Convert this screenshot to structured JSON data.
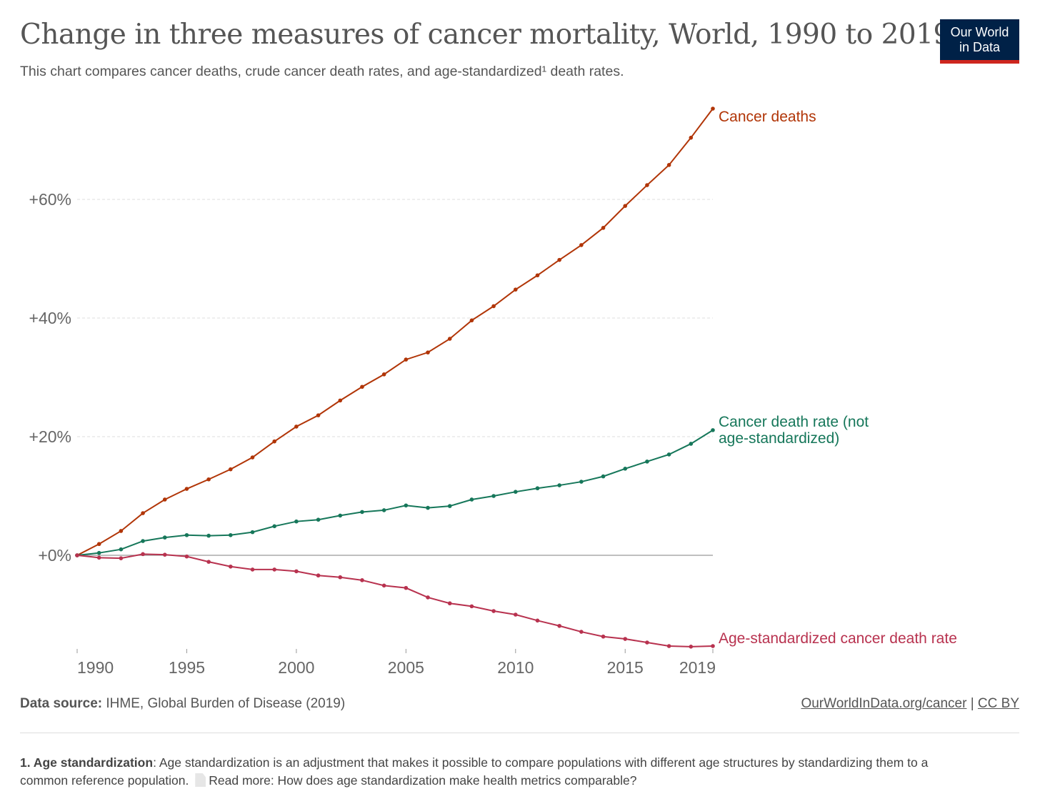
{
  "header": {
    "title": "Change in three measures of cancer mortality, World, 1990 to 2019",
    "subtitle_pre": "This chart compares cancer deaths, crude cancer death rates, and age-standardized",
    "subtitle_sup": "¹",
    "subtitle_post": " death rates.",
    "logo_line1": "Our World",
    "logo_line2": "in Data"
  },
  "chart_data": {
    "type": "line",
    "title": "Change in three measures of cancer mortality, World, 1990 to 2019",
    "x": [
      1990,
      1991,
      1992,
      1993,
      1994,
      1995,
      1996,
      1997,
      1998,
      1999,
      2000,
      2001,
      2002,
      2003,
      2004,
      2005,
      2006,
      2007,
      2008,
      2009,
      2010,
      2011,
      2012,
      2013,
      2014,
      2015,
      2016,
      2017,
      2018,
      2019
    ],
    "xticks": [
      "1990",
      "1995",
      "2000",
      "2005",
      "2010",
      "2015",
      "2019"
    ],
    "yticks": [
      "+0%",
      "+20%",
      "+40%",
      "+60%"
    ],
    "ytick_values": [
      0,
      20,
      40,
      60
    ],
    "ylim": [
      -16,
      76
    ],
    "xlim": [
      1990,
      2019
    ],
    "grid": "horizontal dashed",
    "legend": "inline labels at line ends (right)",
    "series": [
      {
        "name": "Cancer deaths",
        "color": "#b13507",
        "values": [
          0,
          1.9,
          4.1,
          7.1,
          9.4,
          11.2,
          12.8,
          14.5,
          16.5,
          19.2,
          21.7,
          23.6,
          26.1,
          28.4,
          30.5,
          33.0,
          34.2,
          36.5,
          39.6,
          42.0,
          44.8,
          47.2,
          49.8,
          52.3,
          55.2,
          58.9,
          62.4,
          65.8,
          70.4,
          75.3
        ]
      },
      {
        "name": "Cancer death rate (not age-standardized)",
        "color": "#16775a",
        "values": [
          0,
          0.4,
          1.0,
          2.4,
          3.0,
          3.4,
          3.3,
          3.4,
          3.9,
          4.9,
          5.7,
          6.0,
          6.7,
          7.3,
          7.6,
          8.4,
          8.0,
          8.3,
          9.4,
          10.0,
          10.7,
          11.3,
          11.8,
          12.4,
          13.3,
          14.6,
          15.8,
          17.0,
          18.8,
          21.1
        ]
      },
      {
        "name": "Age-standardized cancer death rate",
        "color": "#b8324f",
        "values": [
          0,
          -0.4,
          -0.5,
          0.2,
          0.1,
          -0.2,
          -1.1,
          -1.9,
          -2.4,
          -2.4,
          -2.7,
          -3.4,
          -3.7,
          -4.2,
          -5.1,
          -5.5,
          -7.1,
          -8.1,
          -8.6,
          -9.4,
          -10.0,
          -11.0,
          -11.9,
          -12.9,
          -13.7,
          -14.1,
          -14.7,
          -15.3,
          -15.4,
          -15.3
        ]
      }
    ]
  },
  "footer": {
    "source_label": "Data source:",
    "source_text": " IHME, Global Burden of Disease (2019)",
    "link": "OurWorldInData.org/cancer",
    "separator": " | ",
    "license": "CC BY",
    "footnote_label": "1. Age standardization",
    "footnote_text": ": Age standardization is an adjustment that makes it possible to compare populations with different age structures by standardizing them to a common reference population.",
    "doc_icon": "document-icon",
    "read_more": "Read more: How does age standardization make health metrics comparable?"
  }
}
